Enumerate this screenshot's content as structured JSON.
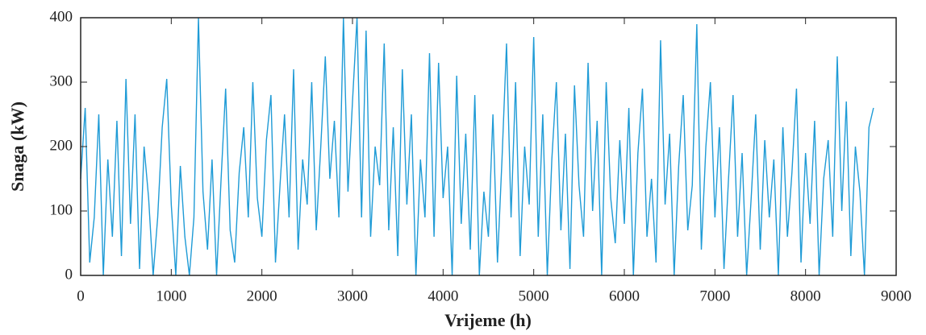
{
  "chart_data": {
    "type": "line",
    "x_label": "Vrijeme (h)",
    "y_label": "Snaga (kW)",
    "x": [
      0,
      50,
      100,
      150,
      200,
      250,
      300,
      350,
      400,
      450,
      500,
      550,
      600,
      650,
      700,
      750,
      800,
      850,
      900,
      950,
      1000,
      1050,
      1100,
      1150,
      1200,
      1250,
      1300,
      1350,
      1400,
      1450,
      1500,
      1550,
      1600,
      1650,
      1700,
      1750,
      1800,
      1850,
      1900,
      1950,
      2000,
      2050,
      2100,
      2150,
      2200,
      2250,
      2300,
      2350,
      2400,
      2450,
      2500,
      2550,
      2600,
      2650,
      2700,
      2750,
      2800,
      2850,
      2900,
      2950,
      3000,
      3050,
      3100,
      3150,
      3200,
      3250,
      3300,
      3350,
      3400,
      3450,
      3500,
      3550,
      3600,
      3650,
      3700,
      3750,
      3800,
      3850,
      3900,
      3950,
      4000,
      4050,
      4100,
      4150,
      4200,
      4250,
      4300,
      4350,
      4400,
      4450,
      4500,
      4550,
      4600,
      4650,
      4700,
      4750,
      4800,
      4850,
      4900,
      4950,
      5000,
      5050,
      5100,
      5150,
      5200,
      5250,
      5300,
      5350,
      5400,
      5450,
      5500,
      5550,
      5600,
      5650,
      5700,
      5750,
      5800,
      5850,
      5900,
      5950,
      6000,
      6050,
      6100,
      6150,
      6200,
      6250,
      6300,
      6350,
      6400,
      6450,
      6500,
      6550,
      6600,
      6650,
      6700,
      6750,
      6800,
      6850,
      6900,
      6950,
      7000,
      7050,
      7100,
      7150,
      7200,
      7250,
      7300,
      7350,
      7400,
      7450,
      7500,
      7550,
      7600,
      7650,
      7700,
      7750,
      7800,
      7850,
      7900,
      7950,
      8000,
      8050,
      8100,
      8150,
      8200,
      8250,
      8300,
      8350,
      8400,
      8450,
      8500,
      8550,
      8600,
      8650,
      8700,
      8750
    ],
    "series": [
      {
        "name": "Snaga",
        "color": "#1f9bd6",
        "values": [
          150,
          260,
          20,
          90,
          250,
          0,
          180,
          60,
          240,
          30,
          305,
          80,
          250,
          10,
          200,
          120,
          0,
          90,
          230,
          305,
          110,
          0,
          170,
          60,
          0,
          90,
          400,
          130,
          40,
          180,
          0,
          150,
          290,
          70,
          20,
          160,
          230,
          90,
          300,
          120,
          60,
          210,
          280,
          20,
          140,
          250,
          90,
          320,
          40,
          180,
          110,
          300,
          70,
          200,
          340,
          150,
          240,
          90,
          400,
          130,
          270,
          400,
          90,
          380,
          60,
          200,
          140,
          360,
          70,
          230,
          30,
          320,
          110,
          250,
          0,
          180,
          90,
          345,
          60,
          330,
          120,
          200,
          0,
          310,
          80,
          220,
          40,
          280,
          0,
          130,
          60,
          250,
          20,
          180,
          360,
          90,
          300,
          30,
          200,
          110,
          370,
          60,
          250,
          0,
          180,
          300,
          70,
          220,
          10,
          295,
          140,
          60,
          330,
          100,
          240,
          0,
          300,
          120,
          50,
          210,
          80,
          260,
          0,
          190,
          290,
          60,
          150,
          20,
          365,
          110,
          220,
          0,
          170,
          280,
          70,
          140,
          390,
          40,
          200,
          300,
          90,
          230,
          10,
          150,
          280,
          60,
          190,
          0,
          120,
          250,
          40,
          210,
          90,
          180,
          0,
          230,
          60,
          160,
          290,
          20,
          190,
          80,
          240,
          0,
          150,
          210,
          60,
          340,
          100,
          270,
          30,
          200,
          130,
          0,
          230,
          260
        ]
      }
    ],
    "xlim": [
      0,
      9000
    ],
    "xticks": [
      0,
      1000,
      2000,
      3000,
      4000,
      5000,
      6000,
      7000,
      8000,
      9000
    ],
    "ylim": [
      0,
      400
    ],
    "yticks": [
      0,
      100,
      200,
      300,
      400
    ]
  }
}
